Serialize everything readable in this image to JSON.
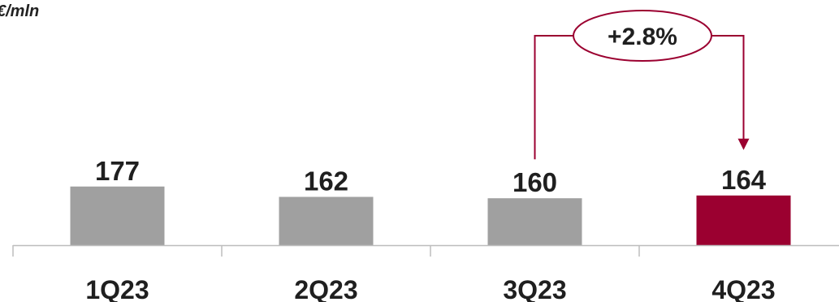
{
  "chart_data": {
    "type": "bar",
    "unit_label": "€/mln",
    "categories": [
      "1Q23",
      "2Q23",
      "3Q23",
      "4Q23"
    ],
    "values": [
      177,
      162,
      160,
      164
    ],
    "data_labels": [
      "177",
      "162",
      "160",
      "164"
    ],
    "bar_colors": [
      "#a0a0a0",
      "#a0a0a0",
      "#a0a0a0",
      "#9b0030"
    ],
    "annotation": {
      "text": "+2.8%",
      "from": "3Q23",
      "to": "4Q23",
      "color": "#9b0030"
    },
    "xlabel": "",
    "ylabel": "",
    "grid": false,
    "legend": "none"
  }
}
